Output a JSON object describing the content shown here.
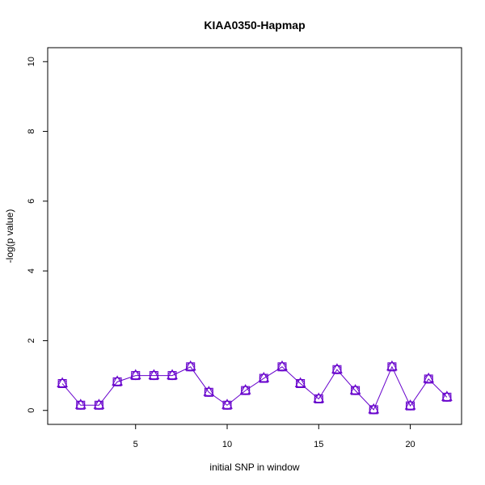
{
  "chart_data": {
    "type": "line",
    "title": "KIAA0350-Hapmap",
    "xlabel": "initial SNP in window",
    "ylabel": "-log(p value)",
    "xlim": [
      0.2,
      22.8
    ],
    "ylim": [
      -0.4,
      10.4
    ],
    "xticks": [
      5,
      10,
      15,
      20
    ],
    "yticks": [
      0,
      2,
      4,
      6,
      8,
      10
    ],
    "x": [
      1,
      2,
      3,
      4,
      5,
      6,
      7,
      8,
      9,
      10,
      11,
      12,
      13,
      14,
      15,
      16,
      17,
      18,
      19,
      20,
      21,
      22
    ],
    "series": [
      {
        "color": "#6600cc",
        "markers": [
          "circle",
          "square",
          "triangle"
        ],
        "values": [
          0.77,
          0.15,
          0.15,
          0.82,
          1.0,
          1.0,
          1.0,
          1.25,
          0.52,
          0.15,
          0.57,
          0.92,
          1.25,
          0.77,
          0.33,
          1.17,
          0.57,
          0.02,
          1.25,
          0.13,
          0.9,
          0.38
        ]
      }
    ],
    "grid": false,
    "legend": "none"
  }
}
